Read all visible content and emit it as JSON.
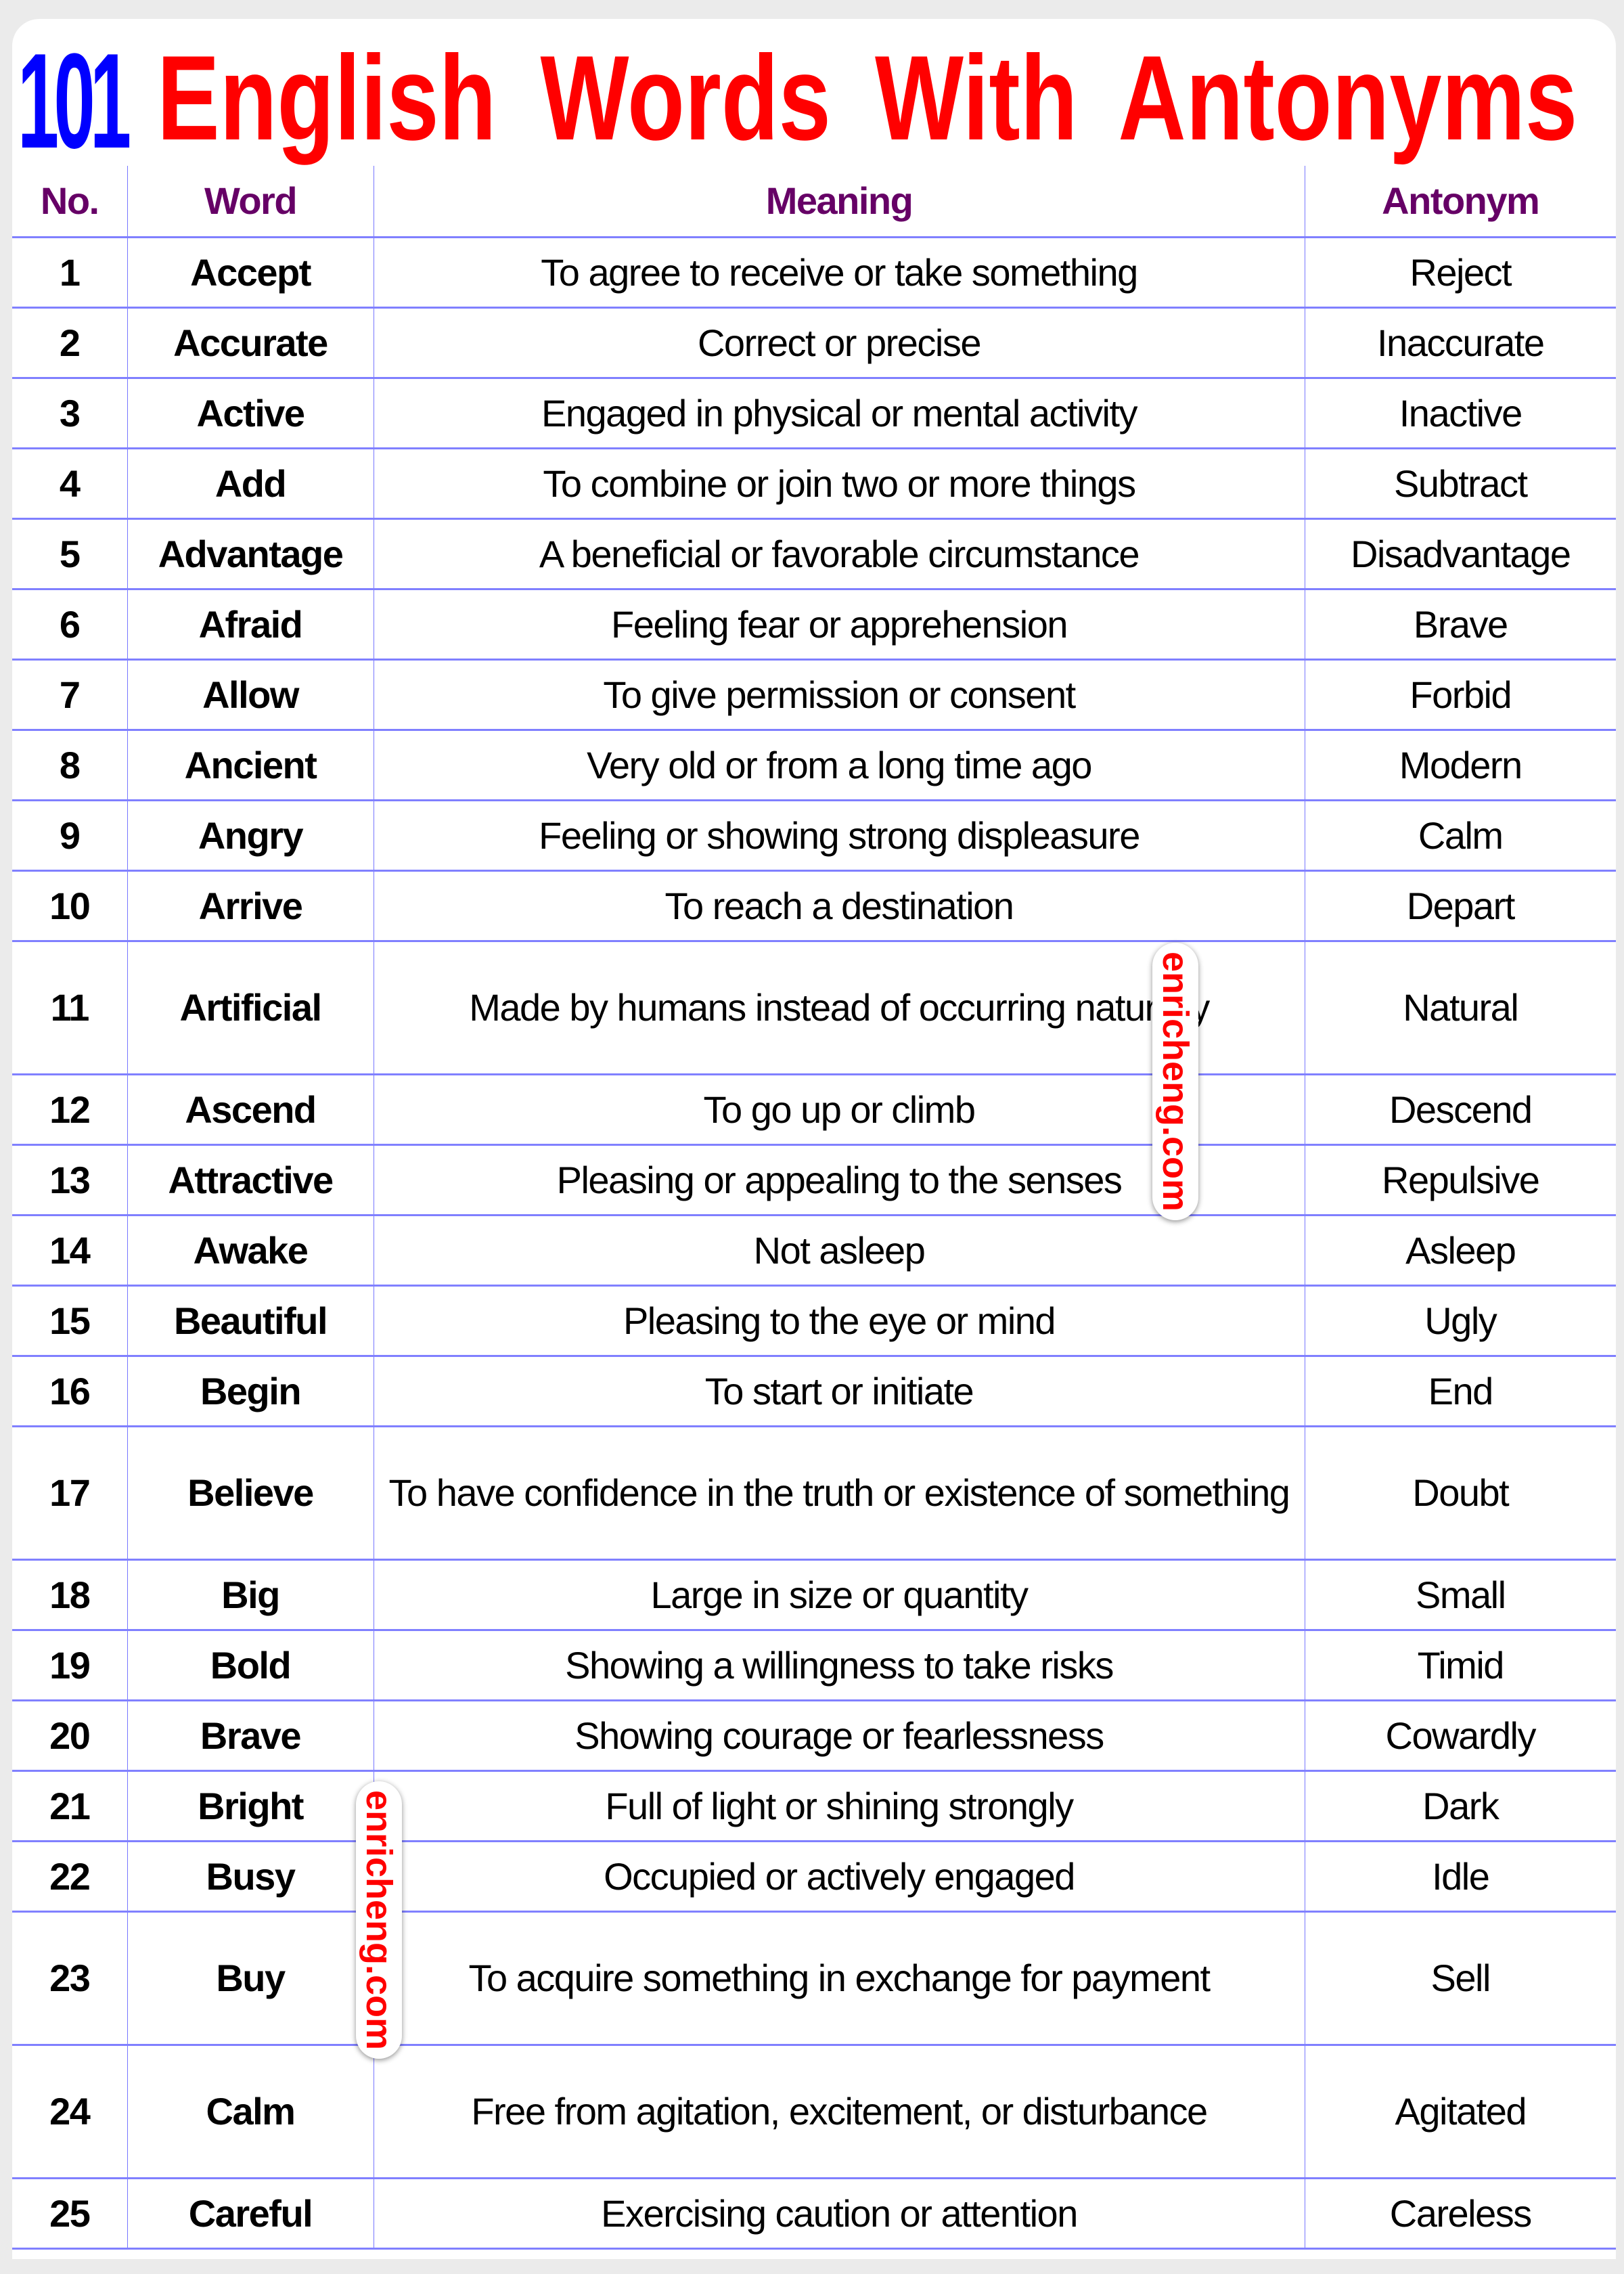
{
  "title": {
    "number": "101",
    "text": "English Words With Antonyms"
  },
  "colors": {
    "number": "#0000ff",
    "title": "#ff0000",
    "header": "#660066",
    "grid": "#8080ff"
  },
  "headers": {
    "no": "No.",
    "word": "Word",
    "meaning": "Meaning",
    "antonym": "Antonym"
  },
  "rows": [
    {
      "no": "1",
      "word": "Accept",
      "meaning": "To agree to receive or take something",
      "antonym": "Reject"
    },
    {
      "no": "2",
      "word": "Accurate",
      "meaning": "Correct or precise",
      "antonym": "Inaccurate"
    },
    {
      "no": "3",
      "word": "Active",
      "meaning": "Engaged in physical or mental activity",
      "antonym": "Inactive"
    },
    {
      "no": "4",
      "word": "Add",
      "meaning": "To combine or join two or more things",
      "antonym": "Subtract"
    },
    {
      "no": "5",
      "word": "Advantage",
      "meaning": "A beneficial or favorable circumstance",
      "antonym": "Disadvantage"
    },
    {
      "no": "6",
      "word": "Afraid",
      "meaning": "Feeling fear or apprehension",
      "antonym": "Brave"
    },
    {
      "no": "7",
      "word": "Allow",
      "meaning": "To give permission or consent",
      "antonym": "Forbid"
    },
    {
      "no": "8",
      "word": "Ancient",
      "meaning": "Very old or from a long time ago",
      "antonym": "Modern"
    },
    {
      "no": "9",
      "word": "Angry",
      "meaning": "Feeling or showing strong displeasure",
      "antonym": "Calm"
    },
    {
      "no": "10",
      "word": "Arrive",
      "meaning": "To reach a destination",
      "antonym": "Depart"
    },
    {
      "no": "11",
      "word": "Artificial",
      "meaning": "Made by humans instead of occurring naturally",
      "antonym": "Natural"
    },
    {
      "no": "12",
      "word": "Ascend",
      "meaning": "To go up or climb",
      "antonym": "Descend"
    },
    {
      "no": "13",
      "word": "Attractive",
      "meaning": "Pleasing or appealing to the senses",
      "antonym": "Repulsive"
    },
    {
      "no": "14",
      "word": "Awake",
      "meaning": "Not asleep",
      "antonym": "Asleep"
    },
    {
      "no": "15",
      "word": "Beautiful",
      "meaning": "Pleasing to the eye or mind",
      "antonym": "Ugly"
    },
    {
      "no": "16",
      "word": "Begin",
      "meaning": "To start or initiate",
      "antonym": "End"
    },
    {
      "no": "17",
      "word": "Believe",
      "meaning": "To have confidence in the truth or existence of something",
      "antonym": "Doubt"
    },
    {
      "no": "18",
      "word": "Big",
      "meaning": "Large in size or quantity",
      "antonym": "Small"
    },
    {
      "no": "19",
      "word": "Bold",
      "meaning": "Showing a willingness to take risks",
      "antonym": "Timid"
    },
    {
      "no": "20",
      "word": "Brave",
      "meaning": "Showing courage or fearlessness",
      "antonym": "Cowardly"
    },
    {
      "no": "21",
      "word": "Bright",
      "meaning": "Full of light or shining strongly",
      "antonym": "Dark"
    },
    {
      "no": "22",
      "word": "Busy",
      "meaning": "Occupied or actively engaged",
      "antonym": "Idle"
    },
    {
      "no": "23",
      "word": "Buy",
      "meaning": "To acquire something in exchange for payment",
      "antonym": "Sell"
    },
    {
      "no": "24",
      "word": "Calm",
      "meaning": "Free from agitation, excitement, or disturbance",
      "antonym": "Agitated"
    },
    {
      "no": "25",
      "word": "Careful",
      "meaning": "Exercising caution or attention",
      "antonym": "Careless"
    }
  ],
  "watermark": "enricheng.com"
}
